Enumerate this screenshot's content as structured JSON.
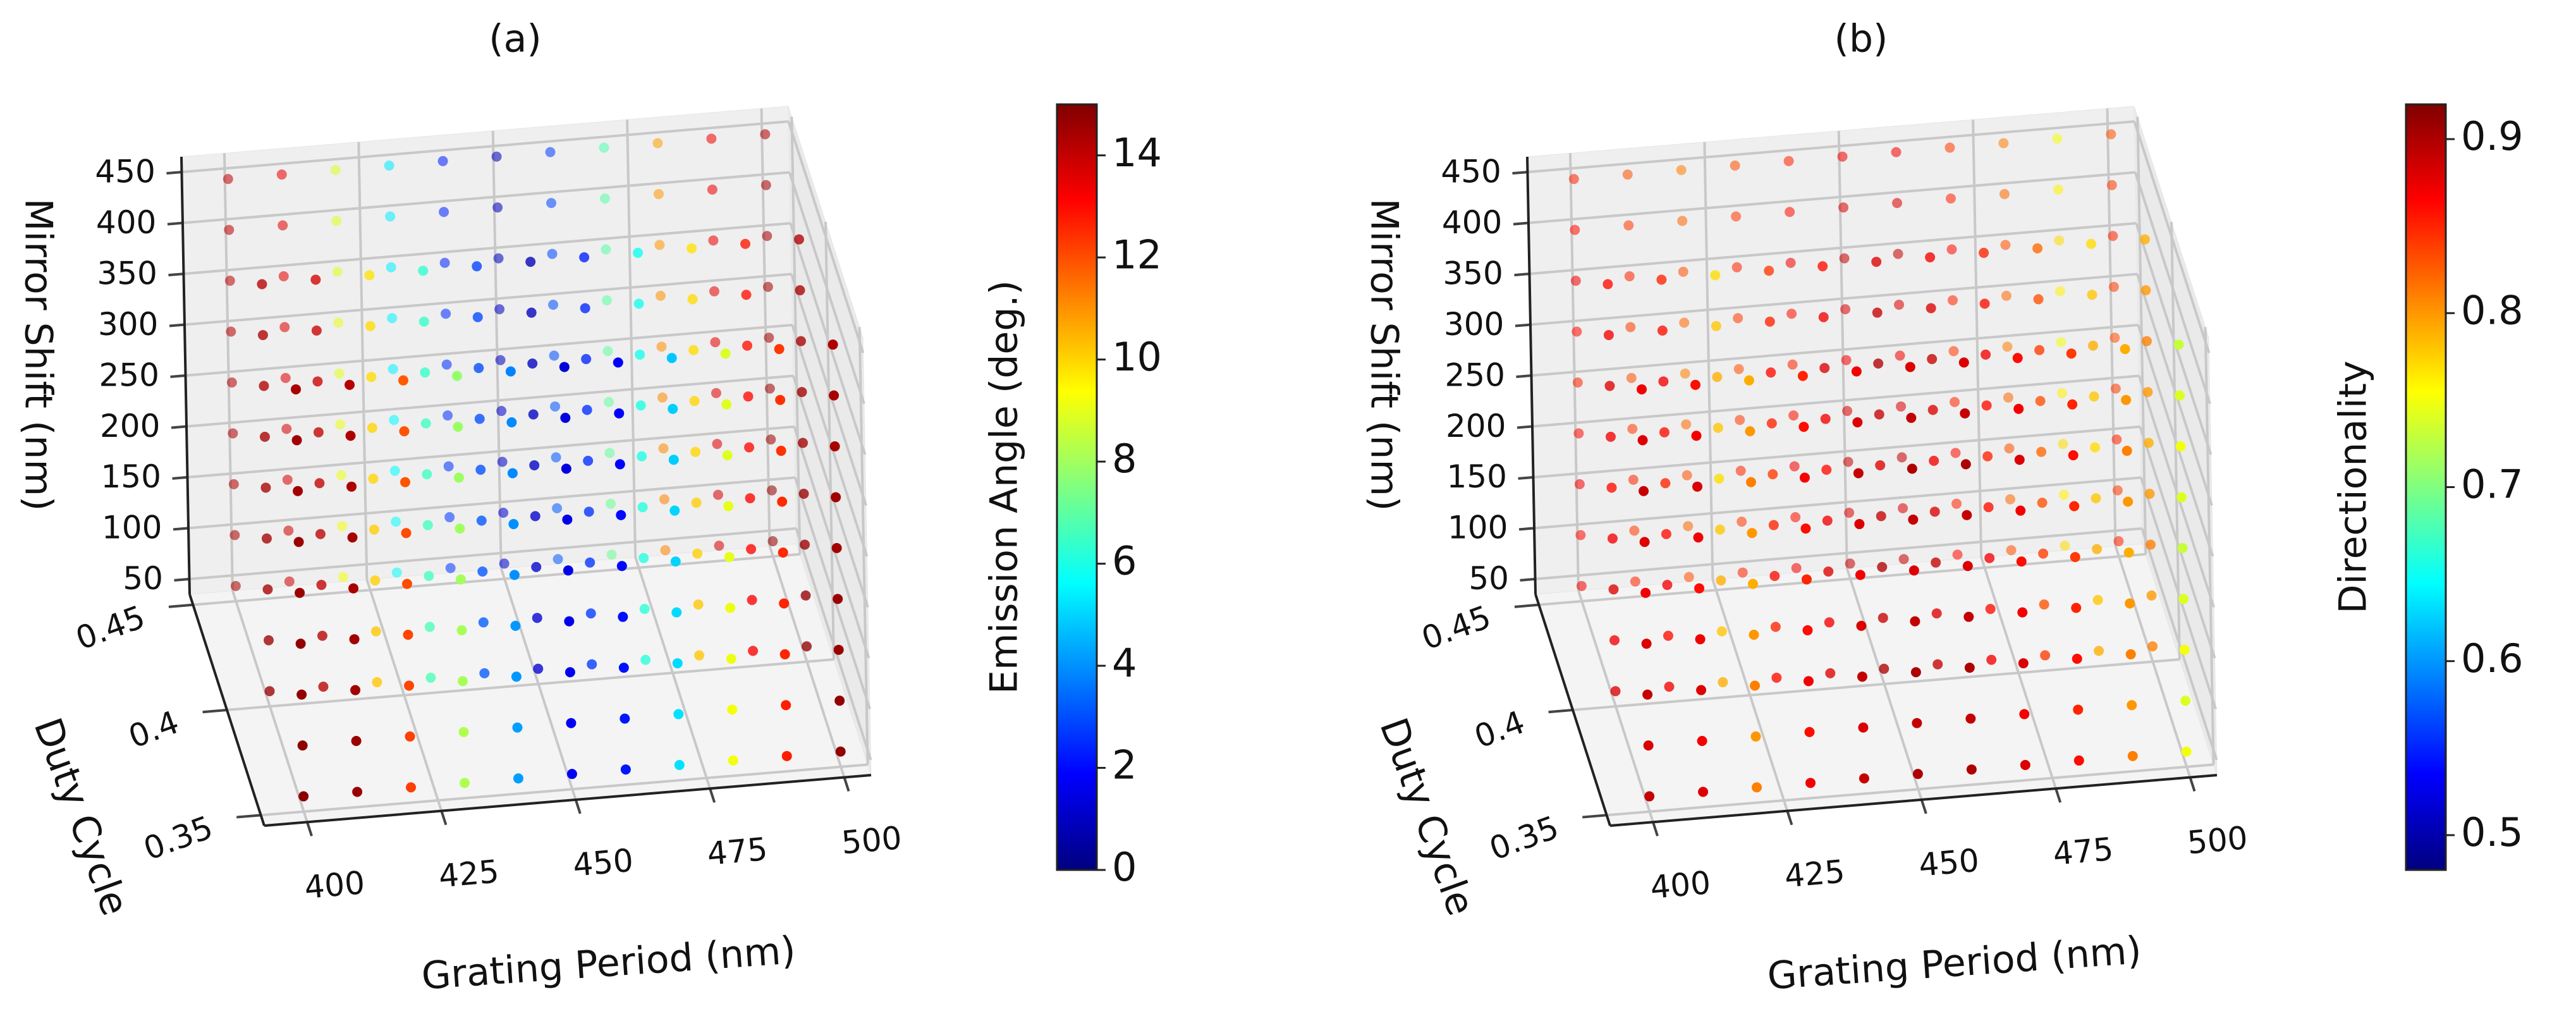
{
  "chart_data": [
    {
      "type": "scatter3d",
      "title": "(a)",
      "xlabel": "Grating Period (nm)",
      "ylabel": "Duty Cycle",
      "zlabel": "Mirror Shift (nm)",
      "colorbar_label": "Emission Angle (deg.)",
      "colormap": "jet",
      "x": [
        400,
        410,
        420,
        430,
        440,
        450,
        460,
        470,
        480,
        490,
        500
      ],
      "y": [
        0.35,
        0.4,
        0.45
      ],
      "z": [
        50,
        100,
        150,
        200,
        250,
        300,
        350,
        400,
        450
      ],
      "xlim": [
        392,
        505
      ],
      "ylim": [
        0.345,
        0.455
      ],
      "zlim": [
        35,
        465
      ],
      "xticks": [
        400,
        425,
        450,
        475,
        500
      ],
      "yticks": [
        0.35,
        0.4,
        0.45
      ],
      "zticks": [
        50,
        100,
        150,
        200,
        250,
        300,
        350,
        400,
        450
      ],
      "clim": [
        0,
        15
      ],
      "cticks": [
        0,
        2,
        4,
        6,
        8,
        10,
        12,
        14
      ],
      "values": [
        [
          [
            14.8,
            14.8,
            14.7,
            14.7,
            14.6,
            14.6,
            14.5,
            14.5,
            14.4
          ],
          [
            14.6,
            14.6,
            14.5,
            14.5,
            14.4,
            14.4,
            14.3,
            14.3,
            14.2
          ],
          [
            14.4,
            14.4,
            14.3,
            14.3,
            14.2,
            14.2,
            14.1,
            14.1,
            14.0
          ]
        ],
        [
          [
            14.6,
            14.6,
            14.5,
            14.5,
            14.4,
            14.4,
            14.3,
            14.3,
            14.2
          ],
          [
            14.2,
            14.2,
            14.1,
            14.1,
            14.0,
            14.0,
            13.9,
            13.9,
            13.8
          ],
          [
            13.8,
            13.8,
            13.7,
            13.7,
            13.6,
            13.6,
            13.5,
            13.5,
            13.4
          ]
        ],
        [
          [
            12.2,
            12.2,
            12.1,
            12.1,
            12.0,
            12.0,
            11.9,
            11.9,
            11.8
          ],
          [
            10.2,
            10.2,
            10.1,
            10.1,
            10.0,
            10.0,
            9.9,
            9.9,
            9.8
          ],
          [
            9.2,
            9.2,
            9.1,
            9.1,
            9.0,
            9.0,
            8.9,
            8.9,
            8.8
          ]
        ],
        [
          [
            8.2,
            8.2,
            8.1,
            8.1,
            8.0,
            8.0,
            7.9,
            7.9,
            7.8
          ],
          [
            6.7,
            6.7,
            6.6,
            6.6,
            6.5,
            6.5,
            6.4,
            6.4,
            6.3
          ],
          [
            5.7,
            5.7,
            5.6,
            5.6,
            5.5,
            5.5,
            5.4,
            5.4,
            5.3
          ]
        ],
        [
          [
            4.2,
            4.2,
            4.1,
            4.1,
            4.0,
            4.0,
            3.9,
            3.9,
            3.8
          ],
          [
            3.2,
            3.2,
            3.1,
            3.1,
            3.0,
            3.0,
            2.9,
            2.9,
            2.8
          ],
          [
            2.7,
            2.7,
            2.6,
            2.6,
            2.5,
            2.5,
            2.4,
            2.4,
            2.3
          ]
        ],
        [
          [
            1.7,
            1.7,
            1.6,
            1.6,
            1.5,
            1.5,
            1.4,
            1.4,
            1.3
          ],
          [
            1.2,
            1.2,
            1.1,
            1.1,
            1.0,
            1.0,
            0.9,
            0.9,
            0.8
          ],
          [
            1.2,
            1.2,
            1.1,
            1.1,
            1.0,
            1.0,
            0.9,
            0.9,
            0.8
          ]
        ],
        [
          [
            2.2,
            2.2,
            2.1,
            2.1,
            2.0,
            2.0,
            1.9,
            1.9,
            1.8
          ],
          [
            2.7,
            2.7,
            2.6,
            2.6,
            2.5,
            2.5,
            2.4,
            2.4,
            2.3
          ],
          [
            3.2,
            3.2,
            3.1,
            3.1,
            3.0,
            3.0,
            2.9,
            2.9,
            2.8
          ]
        ],
        [
          [
            5.2,
            5.2,
            5.1,
            5.1,
            5.0,
            5.0,
            4.9,
            4.9,
            4.8
          ],
          [
            6.2,
            6.2,
            6.1,
            6.1,
            6.0,
            6.0,
            5.9,
            5.9,
            5.8
          ],
          [
            7.2,
            7.2,
            7.1,
            7.1,
            7.0,
            7.0,
            6.9,
            6.9,
            6.8
          ]
        ],
        [
          [
            9.2,
            9.2,
            9.1,
            9.1,
            9.0,
            9.0,
            8.9,
            8.9,
            8.8
          ],
          [
            10.2,
            10.2,
            10.1,
            10.1,
            10.0,
            10.0,
            9.9,
            9.9,
            9.8
          ],
          [
            11.2,
            11.2,
            11.1,
            11.1,
            11.0,
            11.0,
            10.9,
            10.9,
            10.8
          ]
        ],
        [
          [
            12.7,
            12.7,
            12.6,
            12.6,
            12.5,
            12.5,
            12.4,
            12.4,
            12.3
          ],
          [
            13.2,
            13.2,
            13.1,
            13.1,
            13.0,
            13.0,
            12.9,
            12.9,
            12.8
          ],
          [
            13.7,
            13.7,
            13.6,
            13.6,
            13.5,
            13.5,
            13.4,
            13.4,
            13.3
          ]
        ],
        [
          [
            14.7,
            14.7,
            14.6,
            14.6,
            14.5,
            14.5,
            14.4,
            14.4,
            14.3
          ],
          [
            14.7,
            14.7,
            14.6,
            14.6,
            14.5,
            14.5,
            14.4,
            14.4,
            14.3
          ],
          [
            14.7,
            14.7,
            14.6,
            14.6,
            14.5,
            14.5,
            14.4,
            14.4,
            14.3
          ]
        ]
      ]
    },
    {
      "type": "scatter3d",
      "title": "(b)",
      "xlabel": "Grating Period (nm)",
      "ylabel": "Duty Cycle",
      "zlabel": "Mirror Shift (nm)",
      "colorbar_label": "Directionality",
      "colormap": "jet",
      "x": [
        400,
        410,
        420,
        430,
        440,
        450,
        460,
        470,
        480,
        490,
        500
      ],
      "y": [
        0.35,
        0.4,
        0.45
      ],
      "z": [
        50,
        100,
        150,
        200,
        250,
        300,
        350,
        400,
        450
      ],
      "xlim": [
        392,
        505
      ],
      "ylim": [
        0.345,
        0.455
      ],
      "zlim": [
        35,
        465
      ],
      "xticks": [
        400,
        425,
        450,
        475,
        500
      ],
      "yticks": [
        0.35,
        0.4,
        0.45
      ],
      "zticks": [
        50,
        100,
        150,
        200,
        250,
        300,
        350,
        400,
        450
      ],
      "clim": [
        0.48,
        0.92
      ],
      "cticks": [
        0.5,
        0.6,
        0.7,
        0.8,
        0.9
      ],
      "values": [
        [
          [
            0.89,
            0.88,
            0.89,
            0.88,
            0.87,
            0.88,
            0.89,
            0.88,
            0.87
          ],
          [
            0.88,
            0.87,
            0.88,
            0.87,
            0.86,
            0.87,
            0.88,
            0.87,
            0.86
          ],
          [
            0.87,
            0.86,
            0.87,
            0.86,
            0.85,
            0.86,
            0.87,
            0.86,
            0.85
          ]
        ],
        [
          [
            0.88,
            0.87,
            0.88,
            0.87,
            0.86,
            0.87,
            0.88,
            0.87,
            0.86
          ],
          [
            0.87,
            0.86,
            0.87,
            0.86,
            0.85,
            0.86,
            0.87,
            0.86,
            0.85
          ],
          [
            0.85,
            0.84,
            0.85,
            0.84,
            0.83,
            0.84,
            0.85,
            0.84,
            0.83
          ]
        ],
        [
          [
            0.81,
            0.8,
            0.81,
            0.8,
            0.79,
            0.8,
            0.81,
            0.8,
            0.79
          ],
          [
            0.79,
            0.78,
            0.79,
            0.78,
            0.77,
            0.78,
            0.79,
            0.78,
            0.77
          ],
          [
            0.83,
            0.82,
            0.83,
            0.82,
            0.81,
            0.82,
            0.83,
            0.82,
            0.81
          ]
        ],
        [
          [
            0.87,
            0.86,
            0.87,
            0.86,
            0.85,
            0.86,
            0.87,
            0.86,
            0.85
          ],
          [
            0.86,
            0.85,
            0.86,
            0.85,
            0.84,
            0.85,
            0.86,
            0.85,
            0.84
          ],
          [
            0.85,
            0.84,
            0.85,
            0.84,
            0.83,
            0.84,
            0.85,
            0.84,
            0.83
          ]
        ],
        [
          [
            0.89,
            0.88,
            0.89,
            0.88,
            0.87,
            0.88,
            0.89,
            0.88,
            0.87
          ],
          [
            0.88,
            0.87,
            0.88,
            0.87,
            0.86,
            0.87,
            0.88,
            0.87,
            0.86
          ],
          [
            0.87,
            0.86,
            0.87,
            0.86,
            0.85,
            0.86,
            0.87,
            0.86,
            0.85
          ]
        ],
        [
          [
            0.9,
            0.89,
            0.9,
            0.89,
            0.88,
            0.89,
            0.9,
            0.89,
            0.88
          ],
          [
            0.9,
            0.89,
            0.9,
            0.89,
            0.88,
            0.89,
            0.9,
            0.89,
            0.88
          ],
          [
            0.89,
            0.88,
            0.89,
            0.88,
            0.87,
            0.88,
            0.89,
            0.88,
            0.87
          ]
        ],
        [
          [
            0.9,
            0.89,
            0.9,
            0.89,
            0.88,
            0.89,
            0.9,
            0.89,
            0.88
          ],
          [
            0.89,
            0.88,
            0.89,
            0.88,
            0.87,
            0.88,
            0.89,
            0.88,
            0.87
          ],
          [
            0.89,
            0.88,
            0.89,
            0.88,
            0.87,
            0.88,
            0.89,
            0.88,
            0.87
          ]
        ],
        [
          [
            0.88,
            0.87,
            0.88,
            0.87,
            0.86,
            0.87,
            0.88,
            0.87,
            0.86
          ],
          [
            0.87,
            0.86,
            0.87,
            0.86,
            0.85,
            0.86,
            0.87,
            0.86,
            0.85
          ],
          [
            0.86,
            0.85,
            0.86,
            0.85,
            0.84,
            0.85,
            0.86,
            0.85,
            0.84
          ]
        ],
        [
          [
            0.86,
            0.85,
            0.86,
            0.85,
            0.84,
            0.85,
            0.86,
            0.85,
            0.84
          ],
          [
            0.84,
            0.83,
            0.84,
            0.83,
            0.82,
            0.83,
            0.84,
            0.83,
            0.82
          ],
          [
            0.83,
            0.82,
            0.83,
            0.82,
            0.81,
            0.82,
            0.83,
            0.82,
            0.81
          ]
        ],
        [
          [
            0.81,
            0.8,
            0.81,
            0.8,
            0.79,
            0.8,
            0.81,
            0.8,
            0.79
          ],
          [
            0.79,
            0.78,
            0.79,
            0.78,
            0.77,
            0.78,
            0.79,
            0.78,
            0.77
          ],
          [
            0.77,
            0.76,
            0.77,
            0.76,
            0.75,
            0.76,
            0.77,
            0.76,
            0.75
          ]
        ],
        [
          [
            0.75,
            0.74,
            0.75,
            0.74,
            0.73,
            0.74,
            0.75,
            0.74,
            0.73
          ],
          [
            0.81,
            0.8,
            0.81,
            0.8,
            0.79,
            0.8,
            0.81,
            0.8,
            0.79
          ],
          [
            0.85,
            0.84,
            0.85,
            0.84,
            0.83,
            0.84,
            0.85,
            0.84,
            0.83
          ]
        ]
      ]
    }
  ]
}
